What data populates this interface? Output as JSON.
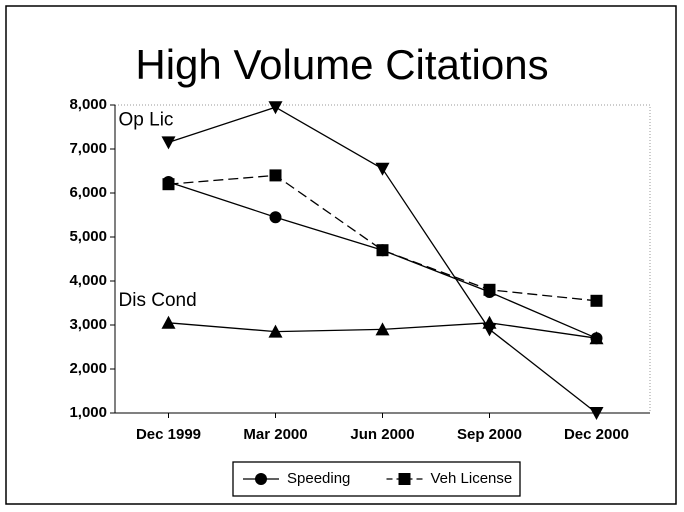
{
  "chart_data": {
    "type": "line",
    "title": "High Volume Citations",
    "categories": [
      "Dec 1999",
      "Mar 2000",
      "Jun 2000",
      "Sep 2000",
      "Dec 2000"
    ],
    "series": [
      {
        "name": "Speeding",
        "color": "#000000",
        "marker": "circle",
        "dash": false,
        "in_legend": true,
        "values": [
          6250,
          5450,
          4700,
          3750,
          2700
        ]
      },
      {
        "name": "Veh License",
        "color": "#000000",
        "marker": "square",
        "dash": true,
        "in_legend": true,
        "values": [
          6200,
          6400,
          4700,
          3800,
          3550
        ]
      },
      {
        "name": "Op Lic",
        "color": "#000000",
        "marker": "triangle-down",
        "dash": false,
        "in_legend": false,
        "values": [
          7150,
          7950,
          6550,
          2900,
          1000
        ]
      },
      {
        "name": "Dis Cond",
        "color": "#000000",
        "marker": "triangle-up",
        "dash": false,
        "in_legend": false,
        "values": [
          3050,
          2850,
          2900,
          3050,
          2700
        ]
      }
    ],
    "ylim": [
      1000,
      8000
    ],
    "yticks": [
      {
        "value": 1000,
        "label": "1,000"
      },
      {
        "value": 2000,
        "label": "2,000"
      },
      {
        "value": 3000,
        "label": "3,000"
      },
      {
        "value": 4000,
        "label": "4,000"
      },
      {
        "value": 5000,
        "label": "5,000"
      },
      {
        "value": 6000,
        "label": "6,000"
      },
      {
        "value": 7000,
        "label": "7,000"
      },
      {
        "value": 8000,
        "label": "8,000"
      }
    ],
    "grid": false,
    "legend": "bottom"
  }
}
